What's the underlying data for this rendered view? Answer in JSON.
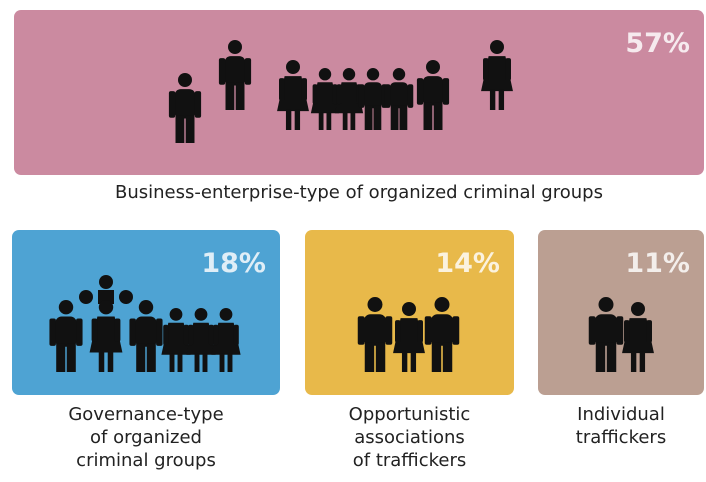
{
  "chart_data": {
    "type": "pictogram",
    "categories": [
      [
        "Business-enterprise-type of organized criminal groups"
      ],
      [
        "Governance-type",
        "of organized",
        "criminal groups"
      ],
      [
        "Opportunistic",
        "associations",
        "of traffickers"
      ],
      [
        "Individual",
        "traffickers"
      ]
    ],
    "values": [
      57,
      18,
      14,
      11
    ],
    "value_labels": [
      "57%",
      "18%",
      "14%",
      "11%"
    ],
    "colors": [
      "#cb8aa0",
      "#4ea3d3",
      "#e8b94a",
      "#bb9f92"
    ]
  }
}
